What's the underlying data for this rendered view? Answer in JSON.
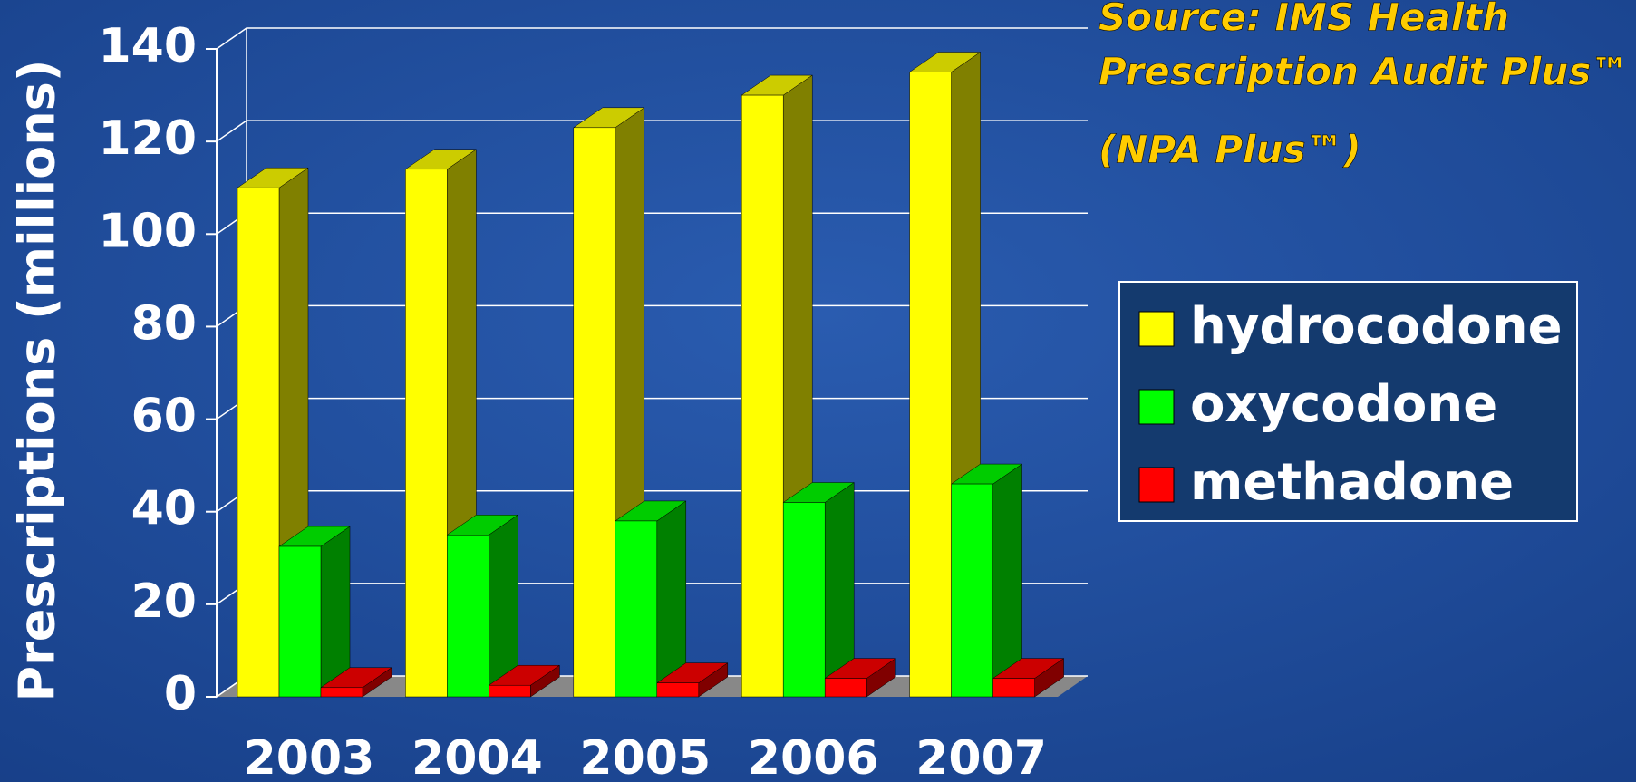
{
  "chart_data": {
    "type": "bar3d",
    "y_label": "Prescriptions (millions)",
    "annotations": [
      "Source: IMS Health",
      "Prescription Audit Plus™",
      "(NPA Plus™)"
    ],
    "categories": [
      "2003",
      "2004",
      "2005",
      "2006",
      "2007"
    ],
    "series": [
      {
        "name": "hydrocodone",
        "color": "#ffff00",
        "values": [
          110,
          114,
          123,
          130,
          135
        ]
      },
      {
        "name": "oxycodone",
        "color": "#00ff00",
        "values": [
          32.5,
          35,
          38,
          42,
          46
        ]
      },
      {
        "name": "methadone",
        "color": "#ff0000",
        "values": [
          2,
          2.5,
          3,
          4,
          4
        ]
      }
    ],
    "ylim": [
      0,
      140
    ],
    "yticks": [
      0,
      20,
      40,
      60,
      80,
      100,
      120,
      140
    ],
    "grid": true
  }
}
